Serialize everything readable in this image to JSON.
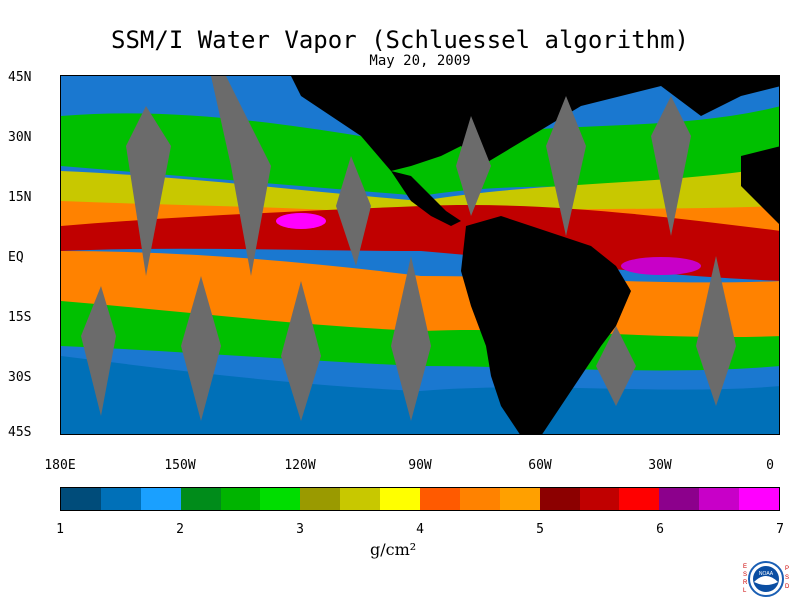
{
  "header": {
    "title": "SSM/I Water Vapor (Schluessel algorithm)",
    "date": "May 20, 2009"
  },
  "map": {
    "lat_labels": [
      "45N",
      "30N",
      "15N",
      "EQ",
      "15S",
      "30S",
      "45S"
    ],
    "lon_labels": [
      "180E",
      "150W",
      "120W",
      "90W",
      "60W",
      "30W",
      "0"
    ],
    "colors": {
      "land": "#000000",
      "no_data": "#6b6b6b"
    }
  },
  "colorbar": {
    "ticks": [
      "1",
      "2",
      "3",
      "4",
      "5",
      "6",
      "7"
    ],
    "unit": "g/cm²",
    "colors": [
      "#004c7a",
      "#0070b8",
      "#1aa0ff",
      "#008c1a",
      "#00b400",
      "#00dd00",
      "#9a9a00",
      "#c8c800",
      "#ffff00",
      "#ff5a00",
      "#ff8200",
      "#ffa000",
      "#8c0000",
      "#c00000",
      "#ff0000",
      "#8c008c",
      "#c800c8",
      "#ff00ff"
    ]
  },
  "logo": {
    "left_letters": "ESRL",
    "right_letters": "PSD",
    "agency": "NOAA"
  }
}
